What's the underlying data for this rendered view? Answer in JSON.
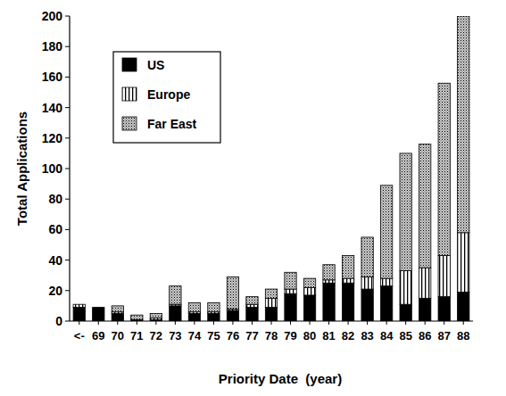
{
  "chart_data": {
    "type": "bar",
    "stacked": true,
    "x_label": "Priority Date  (year)",
    "y_label": "Total Applications",
    "categories": [
      "<-",
      "69",
      "70",
      "71",
      "72",
      "73",
      "74",
      "75",
      "76",
      "77",
      "78",
      "79",
      "80",
      "81",
      "82",
      "83",
      "84",
      "85",
      "86",
      "87",
      "88"
    ],
    "series": [
      {
        "name": "US",
        "color": "#000000",
        "values": [
          9,
          9,
          5,
          1,
          1,
          10,
          5,
          5,
          7,
          9,
          9,
          18,
          17,
          25,
          25,
          21,
          23,
          11,
          15,
          16,
          19
        ]
      },
      {
        "name": "Europe",
        "color": "#ffffff",
        "values": [
          2,
          0,
          1,
          0,
          1,
          1,
          1,
          1,
          1,
          2,
          6,
          3,
          5,
          2,
          3,
          8,
          5,
          22,
          20,
          27,
          39
        ]
      },
      {
        "name": "Far East",
        "color": "#c8c8c8",
        "values": [
          0,
          0,
          4,
          3,
          3,
          12,
          6,
          6,
          21,
          5,
          6,
          11,
          6,
          10,
          15,
          26,
          61,
          77,
          81,
          113,
          142
        ]
      }
    ],
    "ylim": [
      0,
      200
    ],
    "yticks": [
      0,
      20,
      40,
      60,
      80,
      100,
      120,
      140,
      160,
      180,
      200
    ],
    "legend": "upper left"
  }
}
